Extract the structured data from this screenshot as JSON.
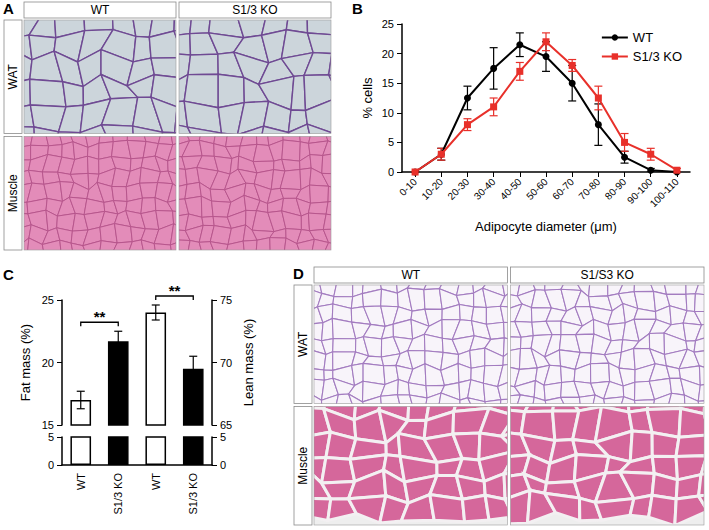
{
  "images": [
    {
      "panel": "A",
      "columns": [
        "WT",
        "S1/3 KO"
      ],
      "rows": [
        "WAT",
        "Muscle"
      ]
    },
    {
      "panel": "D",
      "columns": [
        "WT",
        "S1/S3 KO"
      ],
      "rows": [
        "WAT",
        "Muscle"
      ]
    }
  ],
  "chart_data": [
    {
      "panel": "B",
      "type": "line",
      "categories": [
        "0-10",
        "10-20",
        "20-30",
        "30-40",
        "40-50",
        "50-60",
        "60-70",
        "70-80",
        "80-90",
        "90-100",
        "100-110"
      ],
      "xlabel": "Adipocyte diameter (μm)",
      "ylabel": "% cells",
      "ylim": [
        0,
        25
      ],
      "yticks": [
        0,
        5,
        10,
        15,
        20,
        25
      ],
      "legend": "top-right",
      "series": [
        {
          "name": "WT",
          "color": "#000000",
          "marker": "circle",
          "values": [
            0,
            3,
            12.5,
            17.5,
            21.5,
            19.5,
            15,
            8,
            2.5,
            0.3,
            0
          ],
          "errors": [
            0,
            1,
            2,
            3.5,
            2,
            2.5,
            3,
            3.5,
            1,
            0.3,
            0
          ]
        },
        {
          "name": "S1/3 KO",
          "color": "#e8302a",
          "marker": "square",
          "values": [
            0,
            3,
            8,
            11,
            17,
            22,
            18,
            12.5,
            5,
            3,
            0.3
          ],
          "errors": [
            0,
            1,
            1,
            1.5,
            1.5,
            1.5,
            1,
            2,
            1.5,
            1,
            0.3
          ]
        }
      ]
    },
    {
      "panel": "C",
      "type": "bar",
      "categories": [
        "WT",
        "S1/3 KO",
        "WT",
        "S1/3 KO"
      ],
      "colors": [
        "#ffffff",
        "#000000",
        "#ffffff",
        "#000000"
      ],
      "ylabel": "Fat mass (%)",
      "y2label": "Lean mass (%)",
      "ylim": [
        0,
        25
      ],
      "yticks": [
        0,
        5,
        15,
        20,
        25
      ],
      "ybreak": [
        5,
        15
      ],
      "y2lim": [
        0,
        75
      ],
      "y2ticks": [
        0,
        5,
        65,
        70,
        75
      ],
      "y2break": [
        5,
        65
      ],
      "series": [
        {
          "axis": "y",
          "values": [
            17,
            21.7,
            null,
            null
          ],
          "errors": [
            0.7,
            0.8,
            null,
            null
          ]
        },
        {
          "axis": "y2",
          "values": [
            null,
            null,
            74,
            69.5
          ],
          "errors": [
            null,
            null,
            0.6,
            1
          ]
        }
      ],
      "annotations": [
        {
          "text": "**",
          "categories": [
            0,
            1
          ]
        },
        {
          "text": "**",
          "categories": [
            2,
            3
          ]
        }
      ]
    }
  ]
}
